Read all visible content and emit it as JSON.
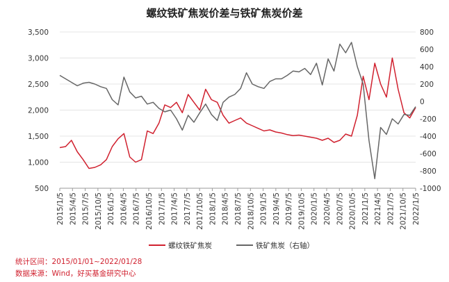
{
  "chart_data": {
    "type": "line",
    "title": "螺纹铁矿焦炭价差与铁矿焦炭价差",
    "x_labels": [
      "2015/1/5",
      "2015/4/5",
      "2015/7/5",
      "2015/10/5",
      "2016/1/5",
      "2016/4/5",
      "2016/7/5",
      "2016/10/5",
      "2017/1/5",
      "2017/4/5",
      "2017/7/5",
      "2017/10/5",
      "2018/1/5",
      "2018/4/5",
      "2018/7/5",
      "2018/10/5",
      "2019/1/5",
      "2019/4/5",
      "2019/7/5",
      "2019/10/5",
      "2020/1/5",
      "2020/4/5",
      "2020/7/5",
      "2020/10/5",
      "2021/1/5",
      "2021/4/5",
      "2021/7/5",
      "2021/10/5",
      "2022/1/5"
    ],
    "y_left": {
      "min": 500,
      "max": 3500,
      "step": 500,
      "tick_labels": [
        "500",
        "1,000",
        "1,500",
        "2,000",
        "2,500",
        "3,000",
        "3,500"
      ]
    },
    "y_right": {
      "min": -1000,
      "max": 800,
      "step": 200,
      "tick_labels": [
        "-1000",
        "-800",
        "-600",
        "-400",
        "-200",
        "0",
        "200",
        "400",
        "600",
        "800"
      ]
    },
    "series": [
      {
        "name": "螺纹铁矿焦炭",
        "axis": "left",
        "color": "#d0202e",
        "values": [
          1280,
          1300,
          1420,
          1200,
          1050,
          880,
          900,
          950,
          1050,
          1300,
          1450,
          1550,
          1100,
          1000,
          1050,
          1600,
          1550,
          1750,
          2100,
          2050,
          2150,
          1950,
          2300,
          2150,
          2000,
          2400,
          2200,
          2150,
          1900,
          1750,
          1800,
          1850,
          1750,
          1700,
          1650,
          1600,
          1620,
          1580,
          1560,
          1530,
          1510,
          1520,
          1500,
          1480,
          1460,
          1420,
          1460,
          1380,
          1420,
          1540,
          1500,
          1900,
          2650,
          2200,
          2900,
          2500,
          2250,
          3000,
          2400,
          1950,
          1850,
          2050
        ]
      },
      {
        "name": "铁矿焦炭（右轴）",
        "axis": "right",
        "color": "#666666",
        "values": [
          300,
          260,
          220,
          180,
          210,
          220,
          200,
          170,
          150,
          20,
          -40,
          280,
          110,
          40,
          60,
          -30,
          -10,
          -80,
          -120,
          -100,
          -200,
          -330,
          -160,
          -240,
          -130,
          -30,
          -150,
          -220,
          -10,
          50,
          80,
          150,
          330,
          200,
          170,
          150,
          230,
          260,
          260,
          300,
          350,
          340,
          380,
          310,
          440,
          190,
          490,
          350,
          660,
          560,
          680,
          400,
          200,
          -450,
          -890,
          -300,
          -380,
          -200,
          -260,
          -150,
          -160,
          -60
        ]
      }
    ]
  },
  "legend": [
    {
      "label": "螺纹铁矿焦炭",
      "color": "#d0202e"
    },
    {
      "label": "铁矿焦炭（右轴）",
      "color": "#666666"
    }
  ],
  "notes": {
    "period": "统计区间：2015/01/01~2022/01/28",
    "source": "数据来源：Wind，好买基金研究中心"
  }
}
